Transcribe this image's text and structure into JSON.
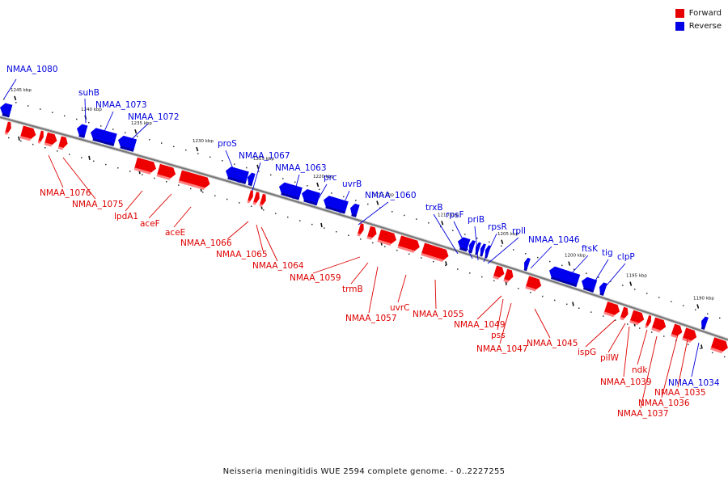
{
  "title": "Neisseria meningitidis WUE 2594 complete genome. - 0..2227255",
  "legend": {
    "forward": {
      "label": "Forward",
      "color": "#ff0000"
    },
    "reverse": {
      "label": "Reverse",
      "color": "#0000ff"
    }
  },
  "ticks": [
    {
      "label": "1245 kbp"
    },
    {
      "label": "1240 kbp"
    },
    {
      "label": "1235 kbp"
    },
    {
      "label": "1230 kbp"
    },
    {
      "label": "1225 kbp"
    },
    {
      "label": "1220 kbp"
    },
    {
      "label": "1215 kbp"
    },
    {
      "label": "1210 kbp"
    },
    {
      "label": "1205 kbp"
    },
    {
      "label": "1200 kbp"
    },
    {
      "label": "1195 kbp"
    },
    {
      "label": "1190 kbp"
    }
  ],
  "genes": [
    {
      "label": "NMAA_1080",
      "strand": "reverse"
    },
    {
      "label": "suhB",
      "strand": "reverse"
    },
    {
      "label": "NMAA_1073",
      "strand": "reverse"
    },
    {
      "label": "NMAA_1072",
      "strand": "reverse"
    },
    {
      "label": "proS",
      "strand": "reverse"
    },
    {
      "label": "NMAA_1067",
      "strand": "reverse"
    },
    {
      "label": "NMAA_1063",
      "strand": "reverse"
    },
    {
      "label": "prc",
      "strand": "reverse"
    },
    {
      "label": "uvrB",
      "strand": "reverse"
    },
    {
      "label": "NMAA_1060",
      "strand": "reverse"
    },
    {
      "label": "trxB",
      "strand": "reverse"
    },
    {
      "label": "rpsF",
      "strand": "reverse"
    },
    {
      "label": "priB",
      "strand": "reverse"
    },
    {
      "label": "rpsR",
      "strand": "reverse"
    },
    {
      "label": "rplI",
      "strand": "reverse"
    },
    {
      "label": "NMAA_1046",
      "strand": "reverse"
    },
    {
      "label": "ftsK",
      "strand": "reverse"
    },
    {
      "label": "tig",
      "strand": "reverse"
    },
    {
      "label": "clpP",
      "strand": "reverse"
    },
    {
      "label": "NMAA_1034",
      "strand": "reverse"
    },
    {
      "label": "NMAA_1076",
      "strand": "forward"
    },
    {
      "label": "NMAA_1075",
      "strand": "forward"
    },
    {
      "label": "lpdA1",
      "strand": "forward"
    },
    {
      "label": "aceF",
      "strand": "forward"
    },
    {
      "label": "aceE",
      "strand": "forward"
    },
    {
      "label": "NMAA_1066",
      "strand": "forward"
    },
    {
      "label": "NMAA_1065",
      "strand": "forward"
    },
    {
      "label": "NMAA_1064",
      "strand": "forward"
    },
    {
      "label": "NMAA_1059",
      "strand": "forward"
    },
    {
      "label": "trmB",
      "strand": "forward"
    },
    {
      "label": "NMAA_1057",
      "strand": "forward"
    },
    {
      "label": "uvrC",
      "strand": "forward"
    },
    {
      "label": "NMAA_1055",
      "strand": "forward"
    },
    {
      "label": "NMAA_1049",
      "strand": "forward"
    },
    {
      "label": "pss",
      "strand": "forward"
    },
    {
      "label": "NMAA_1047",
      "strand": "forward"
    },
    {
      "label": "NMAA_1045",
      "strand": "forward"
    },
    {
      "label": "ispG",
      "strand": "forward"
    },
    {
      "label": "pilW",
      "strand": "forward"
    },
    {
      "label": "ndk",
      "strand": "forward"
    },
    {
      "label": "NMAA_1039",
      "strand": "forward"
    },
    {
      "label": "NMAA_1035",
      "strand": "forward"
    },
    {
      "label": "NMAA_1036",
      "strand": "forward"
    },
    {
      "label": "NMAA_1037",
      "strand": "forward"
    }
  ]
}
